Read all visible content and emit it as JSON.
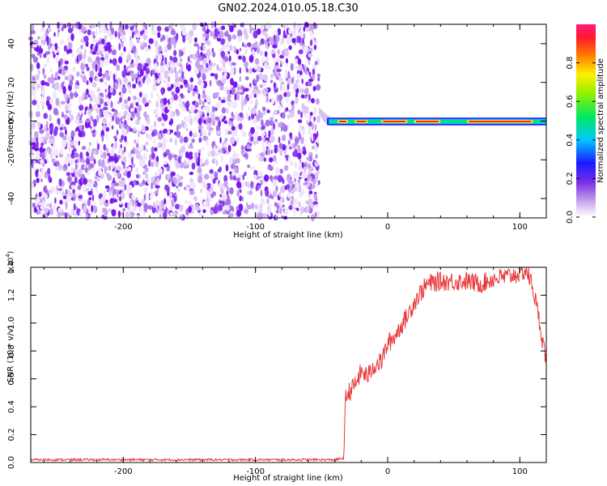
{
  "figure_title": "GN02.2024.010.05.18.C30",
  "colors": {
    "snr_line": "#e8383a",
    "axis": "#000000",
    "spectrogram_noise": "#8a3cf0",
    "spectrogram_signal_core": "#ff1a2e"
  },
  "chart_data": [
    {
      "type": "heatmap",
      "title": "GN02.2024.010.05.18.C30",
      "xlabel": "Height of straight line (km)",
      "ylabel": "Frequency (Hz)",
      "xlim": [
        -270,
        120
      ],
      "ylim": [
        -50,
        50
      ],
      "xticks": [
        -200,
        -100,
        0,
        100
      ],
      "yticks": [
        -40,
        -20,
        0,
        20,
        40
      ],
      "description_of_content": "Noise-only region for heights below about -50 km; a narrow signal trace centred near 0 Hz from about -50 km to 120 km",
      "signal_trace": {
        "x_start": -52,
        "x_end": 120,
        "frequency_hz": 0,
        "initial_offset_hz": 6,
        "bright_segments_x": [
          [
            -38,
            -30
          ],
          [
            -25,
            -15
          ],
          [
            -5,
            15
          ],
          [
            20,
            40
          ],
          [
            60,
            110
          ]
        ]
      },
      "colorbar": {
        "label": "Normalized spectral amplitude",
        "range": [
          0.0,
          1.0
        ],
        "ticks": [
          "0.0",
          "0.2",
          "0.4",
          "0.6",
          "0.8"
        ]
      }
    },
    {
      "type": "line",
      "xlabel": "Height of straight line (km)",
      "ylabel": "SNR (10 * v/v)",
      "yscale_label": "(x10",
      "yscale_exponent": "4",
      "yscale_suffix": ")",
      "xlim": [
        -270,
        120
      ],
      "ylim": [
        0.0,
        1.4
      ],
      "xticks": [
        -200,
        -100,
        0,
        100
      ],
      "yticks": [
        "0.0",
        "0.2",
        "0.4",
        "0.6",
        "0.8",
        "1.0",
        "1.2",
        "1.4"
      ],
      "series": [
        {
          "x": [
            -270,
            -240,
            -200,
            -150,
            -100,
            -60,
            -40,
            -33,
            -32,
            -30,
            -25,
            -20,
            -15,
            -10,
            -5,
            0,
            5,
            10,
            15,
            20,
            25,
            30,
            40,
            50,
            60,
            70,
            80,
            90,
            100,
            105,
            110,
            115,
            120
          ],
          "values": [
            0.02,
            0.02,
            0.02,
            0.02,
            0.02,
            0.02,
            0.02,
            0.03,
            0.45,
            0.5,
            0.55,
            0.65,
            0.62,
            0.7,
            0.72,
            0.85,
            0.9,
            0.98,
            1.05,
            1.15,
            1.22,
            1.28,
            1.3,
            1.3,
            1.3,
            1.28,
            1.32,
            1.33,
            1.36,
            1.38,
            1.25,
            1.0,
            0.72
          ]
        }
      ]
    }
  ]
}
